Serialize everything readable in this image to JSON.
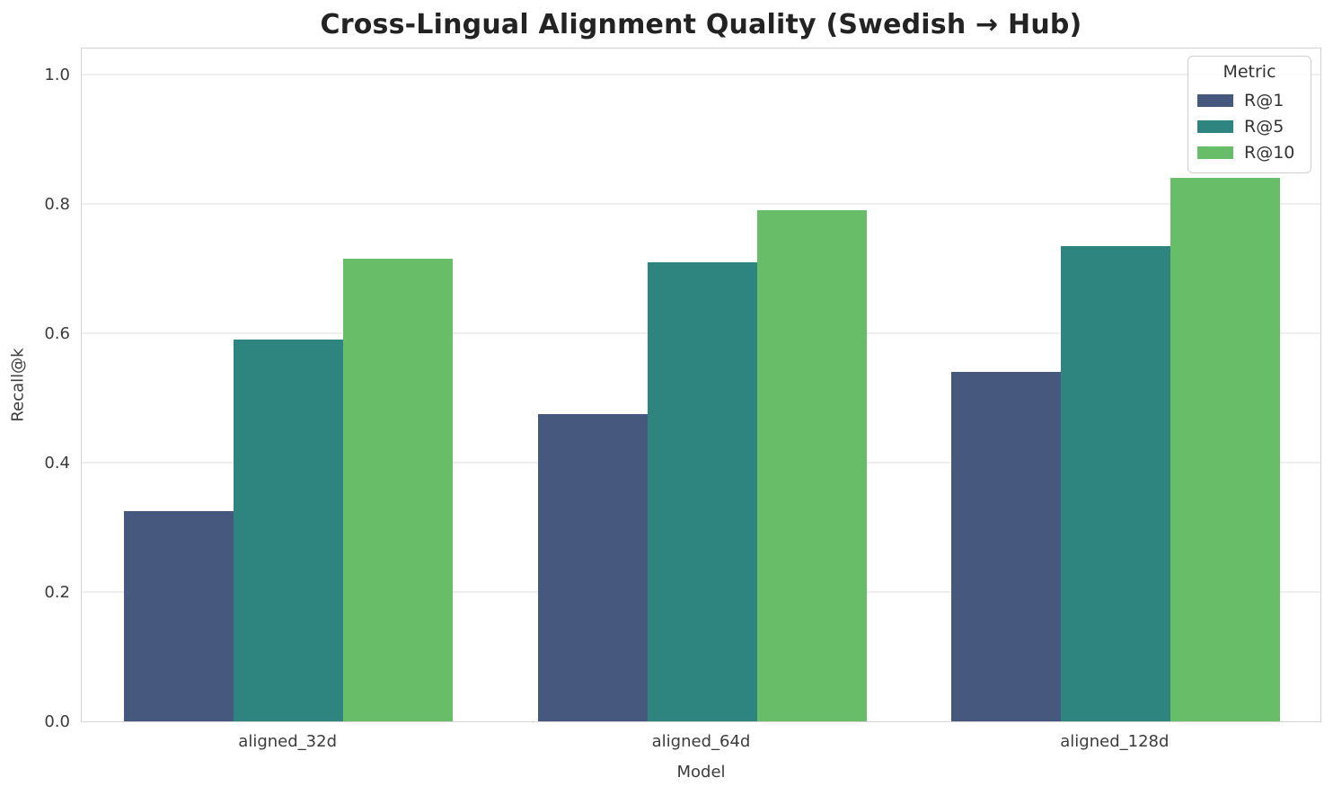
{
  "chart_data": {
    "type": "bar",
    "title": "Cross-Lingual Alignment Quality (Swedish → Hub)",
    "xlabel": "Model",
    "ylabel": "Recall@k",
    "categories": [
      "aligned_32d",
      "aligned_64d",
      "aligned_128d"
    ],
    "series": [
      {
        "name": "R@1",
        "color": "#46587e",
        "values": [
          0.325,
          0.475,
          0.54
        ]
      },
      {
        "name": "R@5",
        "color": "#2e847e",
        "values": [
          0.59,
          0.71,
          0.735
        ]
      },
      {
        "name": "R@10",
        "color": "#68bd69",
        "values": [
          0.715,
          0.79,
          0.84
        ]
      }
    ],
    "legend_title": "Metric",
    "legend_position": "upper right",
    "ylim": [
      0,
      1.0431
    ],
    "yticks": [
      0.0,
      0.2,
      0.4,
      0.6,
      0.8,
      1.0
    ],
    "grid": true,
    "grid_color": "#efefef",
    "spine_color": "#d4d4d4",
    "background_color": "#ffffff"
  }
}
